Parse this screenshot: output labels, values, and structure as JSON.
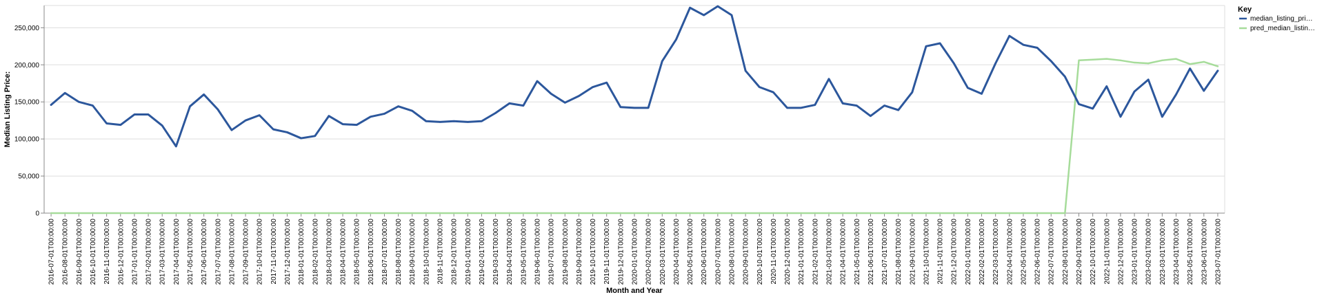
{
  "chart_data": {
    "type": "line",
    "xlabel": "Month and Year",
    "ylabel": "Median Listing Price:",
    "ylim": [
      0,
      280000
    ],
    "yticks": [
      0,
      50000,
      100000,
      150000,
      200000,
      250000
    ],
    "ytick_labels": [
      "0",
      "50,000",
      "100,000",
      "150,000",
      "200,000",
      "250,000"
    ],
    "grid": true,
    "legend": {
      "title": "Key",
      "placement": "top-right"
    },
    "x": [
      "2016-07-01T00:00:00",
      "2016-08-01T00:00:00",
      "2016-09-01T00:00:00",
      "2016-10-01T00:00:00",
      "2016-11-01T00:00:00",
      "2016-12-01T00:00:00",
      "2017-01-01T00:00:00",
      "2017-02-01T00:00:00",
      "2017-03-01T00:00:00",
      "2017-04-01T00:00:00",
      "2017-05-01T00:00:00",
      "2017-06-01T00:00:00",
      "2017-07-01T00:00:00",
      "2017-08-01T00:00:00",
      "2017-09-01T00:00:00",
      "2017-10-01T00:00:00",
      "2017-11-01T00:00:00",
      "2017-12-01T00:00:00",
      "2018-01-01T00:00:00",
      "2018-02-01T00:00:00",
      "2018-03-01T00:00:00",
      "2018-04-01T00:00:00",
      "2018-05-01T00:00:00",
      "2018-06-01T00:00:00",
      "2018-07-01T00:00:00",
      "2018-08-01T00:00:00",
      "2018-09-01T00:00:00",
      "2018-10-01T00:00:00",
      "2018-11-01T00:00:00",
      "2018-12-01T00:00:00",
      "2019-01-01T00:00:00",
      "2019-02-01T00:00:00",
      "2019-03-01T00:00:00",
      "2019-04-01T00:00:00",
      "2019-05-01T00:00:00",
      "2019-06-01T00:00:00",
      "2019-07-01T00:00:00",
      "2019-08-01T00:00:00",
      "2019-09-01T00:00:00",
      "2019-10-01T00:00:00",
      "2019-11-01T00:00:00",
      "2019-12-01T00:00:00",
      "2020-01-01T00:00:00",
      "2020-02-01T00:00:00",
      "2020-03-01T00:00:00",
      "2020-04-01T00:00:00",
      "2020-05-01T00:00:00",
      "2020-06-01T00:00:00",
      "2020-07-01T00:00:00",
      "2020-08-01T00:00:00",
      "2020-09-01T00:00:00",
      "2020-10-01T00:00:00",
      "2020-11-01T00:00:00",
      "2020-12-01T00:00:00",
      "2021-01-01T00:00:00",
      "2021-02-01T00:00:00",
      "2021-03-01T00:00:00",
      "2021-04-01T00:00:00",
      "2021-05-01T00:00:00",
      "2021-06-01T00:00:00",
      "2021-07-01T00:00:00",
      "2021-08-01T00:00:00",
      "2021-09-01T00:00:00",
      "2021-10-01T00:00:00",
      "2021-11-01T00:00:00",
      "2021-12-01T00:00:00",
      "2022-01-01T00:00:00",
      "2022-02-01T00:00:00",
      "2022-03-01T00:00:00",
      "2022-04-01T00:00:00",
      "2022-05-01T00:00:00",
      "2022-06-01T00:00:00",
      "2022-07-01T00:00:00",
      "2022-08-01T00:00:00",
      "2022-09-01T00:00:00",
      "2022-10-01T00:00:00",
      "2022-11-01T00:00:00",
      "2022-12-01T00:00:00",
      "2023-01-01T00:00:00",
      "2023-02-01T00:00:00",
      "2023-03-01T00:00:00",
      "2023-04-01T00:00:00",
      "2023-05-01T00:00:00",
      "2023-06-01T00:00:00",
      "2023-07-01T00:00:00"
    ],
    "series": [
      {
        "name": "median_listing_pri…",
        "color": "#2c579c",
        "values": [
          146000,
          162000,
          150000,
          145000,
          121000,
          119000,
          133000,
          133000,
          118000,
          90000,
          144000,
          160000,
          140000,
          112000,
          125000,
          132000,
          113000,
          109000,
          101000,
          104000,
          131000,
          120000,
          119000,
          130000,
          134000,
          144000,
          138000,
          124000,
          123000,
          124000,
          123000,
          124000,
          135000,
          148000,
          145000,
          178000,
          161000,
          149000,
          158000,
          170000,
          176000,
          143000,
          142000,
          142000,
          205000,
          234000,
          277000,
          267000,
          279000,
          267000,
          192000,
          170000,
          163000,
          142000,
          142000,
          146000,
          181000,
          148000,
          145000,
          131000,
          145000,
          139000,
          163000,
          225000,
          229000,
          202000,
          169000,
          161000,
          202000,
          239000,
          227000,
          223000,
          205000,
          184000,
          147000,
          141000,
          171000,
          130000,
          164000,
          180000,
          130000,
          160000,
          195000,
          165000,
          192000
        ]
      },
      {
        "name": "pred_median_listin…",
        "color": "#a6dc9a",
        "values": [
          0,
          0,
          0,
          0,
          0,
          0,
          0,
          0,
          0,
          0,
          0,
          0,
          0,
          0,
          0,
          0,
          0,
          0,
          0,
          0,
          0,
          0,
          0,
          0,
          0,
          0,
          0,
          0,
          0,
          0,
          0,
          0,
          0,
          0,
          0,
          0,
          0,
          0,
          0,
          0,
          0,
          0,
          0,
          0,
          0,
          0,
          0,
          0,
          0,
          0,
          0,
          0,
          0,
          0,
          0,
          0,
          0,
          0,
          0,
          0,
          0,
          0,
          0,
          0,
          0,
          0,
          0,
          0,
          0,
          0,
          0,
          0,
          0,
          0,
          206000,
          207000,
          208000,
          206000,
          203000,
          202000,
          206000,
          208000,
          201000,
          204000,
          198000
        ]
      }
    ]
  }
}
